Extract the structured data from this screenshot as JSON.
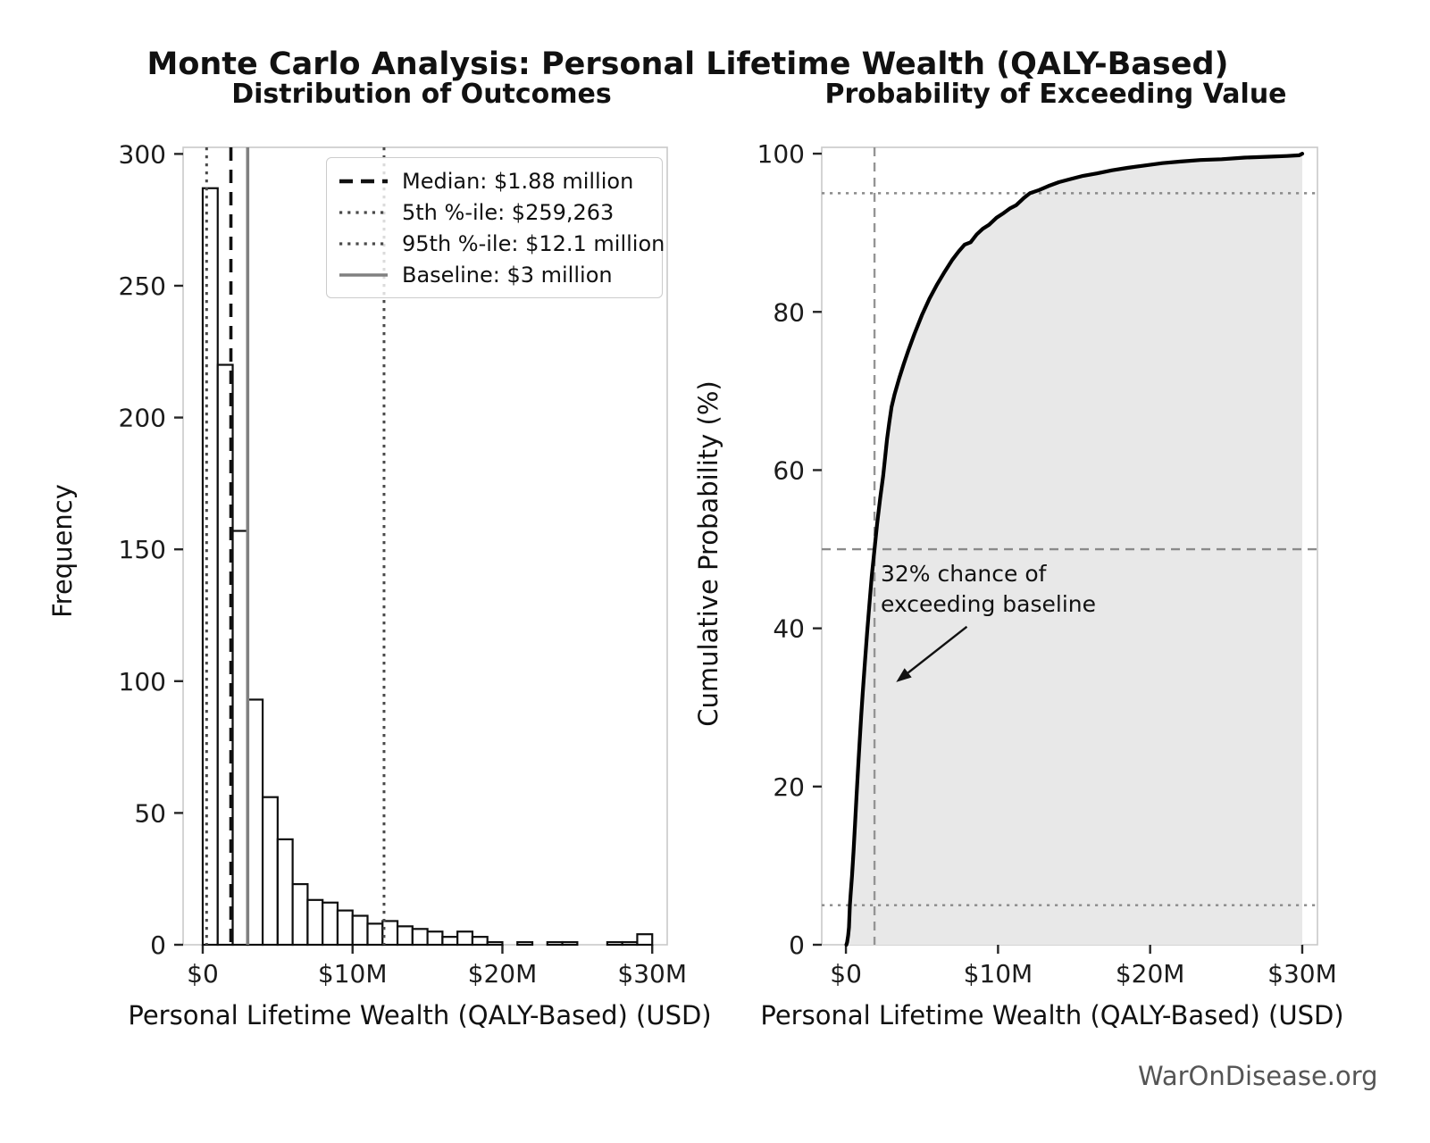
{
  "page": {
    "main_title": "Monte Carlo Analysis: Personal Lifetime Wealth (QALY-Based)",
    "watermark": "WarOnDisease.org"
  },
  "chart_data": [
    {
      "id": "histogram",
      "type": "bar",
      "title": "Distribution of Outcomes",
      "xlabel": "Personal Lifetime Wealth (QALY-Based) (USD)",
      "ylabel": "Frequency",
      "bin_start_musd": 0,
      "bin_width_musd": 1,
      "values": [
        287,
        220,
        157,
        93,
        56,
        40,
        23,
        17,
        16,
        13,
        11,
        8,
        9,
        7,
        6,
        5,
        3,
        5,
        3,
        1,
        0,
        1,
        0,
        1,
        1,
        0,
        0,
        1,
        1,
        4
      ],
      "bar_fill": "#ffffff",
      "bar_edge": "#0f0f0f",
      "xlim": [
        -1.31,
        31.0
      ],
      "ylim": [
        0,
        302.5
      ],
      "xticks": [
        {
          "v": 0,
          "label": "$0"
        },
        {
          "v": 10,
          "label": "$10M"
        },
        {
          "v": 20,
          "label": "$20M"
        },
        {
          "v": 30,
          "label": "$30M"
        }
      ],
      "yticks": [
        {
          "v": 0,
          "label": "0"
        },
        {
          "v": 50,
          "label": "50"
        },
        {
          "v": 100,
          "label": "100"
        },
        {
          "v": 150,
          "label": "150"
        },
        {
          "v": 200,
          "label": "200"
        },
        {
          "v": 250,
          "label": "250"
        },
        {
          "v": 300,
          "label": "300"
        }
      ],
      "legend_position": "upper right",
      "ref_lines": [
        {
          "name": "median-line",
          "axis": "x",
          "v": 1.88,
          "style": "dashed",
          "color": "#111111",
          "width": 3.6,
          "label": "Median: $1.88 million"
        },
        {
          "name": "pct5-line",
          "axis": "x",
          "v": 0.259,
          "style": "dotted",
          "color": "#4a4a4a",
          "width": 3.0,
          "label": "5th %-ile: $259,263"
        },
        {
          "name": "pct95-line",
          "axis": "x",
          "v": 12.1,
          "style": "dotted",
          "color": "#4a4a4a",
          "width": 3.0,
          "label": "95th %-ile: $12.1 million"
        },
        {
          "name": "baseline-line",
          "axis": "x",
          "v": 3.0,
          "style": "solid",
          "color": "#808080",
          "width": 3.6,
          "label": "Baseline: $3 million"
        }
      ]
    },
    {
      "id": "cdf",
      "type": "area",
      "title": "Probability of Exceeding Value",
      "xlabel": "Personal Lifetime Wealth (QALY-Based) (USD)",
      "ylabel": "Cumulative Probability (%)",
      "xlim": [
        -1.59,
        31.0
      ],
      "ylim": [
        0,
        100.8
      ],
      "xticks": [
        {
          "v": 0,
          "label": "$0"
        },
        {
          "v": 10,
          "label": "$10M"
        },
        {
          "v": 20,
          "label": "$20M"
        },
        {
          "v": 30,
          "label": "$30M"
        }
      ],
      "yticks": [
        {
          "v": 0,
          "label": "0"
        },
        {
          "v": 20,
          "label": "20"
        },
        {
          "v": 40,
          "label": "40"
        },
        {
          "v": 60,
          "label": "60"
        },
        {
          "v": 80,
          "label": "80"
        },
        {
          "v": 100,
          "label": "100"
        }
      ],
      "fill_color": "#e8e8e8",
      "line_color": "#000000",
      "curve": [
        [
          0.03,
          0
        ],
        [
          0.08,
          0.3
        ],
        [
          0.15,
          1.2
        ],
        [
          0.2,
          2.2
        ],
        [
          0.26,
          5.0
        ],
        [
          0.32,
          6.6
        ],
        [
          0.4,
          8.7
        ],
        [
          0.5,
          11.8
        ],
        [
          0.6,
          15.3
        ],
        [
          0.7,
          18.9
        ],
        [
          0.8,
          22.3
        ],
        [
          0.9,
          25.6
        ],
        [
          1.0,
          28.8
        ],
        [
          1.1,
          31.7
        ],
        [
          1.25,
          35.8
        ],
        [
          1.4,
          39.6
        ],
        [
          1.55,
          43.2
        ],
        [
          1.7,
          46.6
        ],
        [
          1.88,
          50.0
        ],
        [
          2.05,
          53.2
        ],
        [
          2.25,
          56.4
        ],
        [
          2.45,
          59.3
        ],
        [
          2.7,
          63.9
        ],
        [
          2.85,
          66.0
        ],
        [
          3.0,
          68.0
        ],
        [
          3.2,
          69.6
        ],
        [
          3.5,
          71.6
        ],
        [
          3.8,
          73.4
        ],
        [
          4.1,
          75.1
        ],
        [
          4.5,
          77.2
        ],
        [
          5.0,
          79.6
        ],
        [
          5.5,
          81.7
        ],
        [
          6.0,
          83.5
        ],
        [
          6.5,
          85.1
        ],
        [
          7.0,
          86.6
        ],
        [
          7.4,
          87.6
        ],
        [
          7.8,
          88.5
        ],
        [
          8.2,
          88.8
        ],
        [
          8.6,
          89.8
        ],
        [
          9.0,
          90.5
        ],
        [
          9.4,
          91.0
        ],
        [
          9.9,
          91.9
        ],
        [
          10.3,
          92.4
        ],
        [
          10.8,
          93.1
        ],
        [
          11.2,
          93.5
        ],
        [
          11.7,
          94.4
        ],
        [
          12.1,
          95.0
        ],
        [
          12.7,
          95.4
        ],
        [
          13.3,
          95.9
        ],
        [
          14.0,
          96.4
        ],
        [
          14.8,
          96.8
        ],
        [
          15.6,
          97.2
        ],
        [
          16.5,
          97.5
        ],
        [
          17.5,
          97.9
        ],
        [
          18.5,
          98.2
        ],
        [
          19.6,
          98.5
        ],
        [
          20.8,
          98.8
        ],
        [
          22.0,
          99.0
        ],
        [
          23.3,
          99.2
        ],
        [
          24.7,
          99.3
        ],
        [
          26.2,
          99.5
        ],
        [
          27.6,
          99.6
        ],
        [
          29.0,
          99.7
        ],
        [
          29.8,
          99.8
        ],
        [
          30.0,
          100
        ]
      ],
      "ref_lines": [
        {
          "name": "median-vline",
          "axis": "x",
          "v": 1.88,
          "style": "dashed",
          "color": "#949494",
          "width": 2.4
        },
        {
          "name": "p50-hline",
          "axis": "y",
          "v": 50,
          "style": "dashed",
          "color": "#8a8a8a",
          "width": 2.4
        },
        {
          "name": "p95-hline",
          "axis": "y",
          "v": 95,
          "style": "dotted",
          "color": "#8a8a8a",
          "width": 2.4
        },
        {
          "name": "p5-hline",
          "axis": "y",
          "v": 5,
          "style": "dotted",
          "color": "#8a8a8a",
          "width": 2.4
        }
      ],
      "annotation": {
        "lines": [
          "32% chance of",
          "exceeding baseline"
        ],
        "arrow_start_musd_pct": [
          7.95,
          40.2
        ],
        "arrow_tip_musd_pct": [
          3.3,
          33.2
        ]
      }
    }
  ]
}
